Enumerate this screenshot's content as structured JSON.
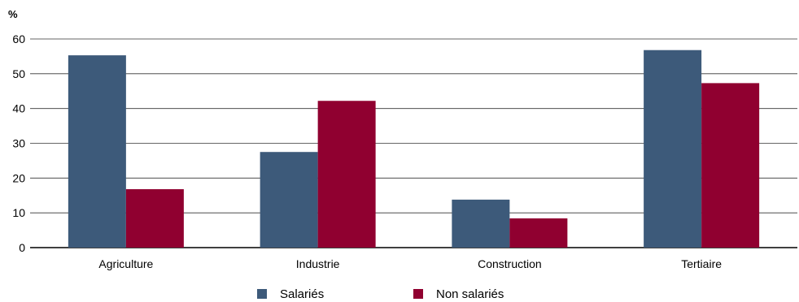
{
  "chart_data": {
    "type": "bar",
    "ylabel": "%",
    "ylim": [
      0,
      60
    ],
    "yticks": [
      0,
      10,
      20,
      30,
      40,
      50,
      60
    ],
    "grid": true,
    "legend_position": "bottom",
    "categories": [
      "Agriculture",
      "Industrie",
      "Construction",
      "Tertiaire"
    ],
    "series": [
      {
        "name": "Salariés",
        "color": "#3d5a7a",
        "values": [
          55.3,
          27.5,
          13.8,
          56.8
        ]
      },
      {
        "name": "Non salariés",
        "color": "#900030",
        "values": [
          16.8,
          42.2,
          8.4,
          47.3
        ]
      }
    ]
  }
}
